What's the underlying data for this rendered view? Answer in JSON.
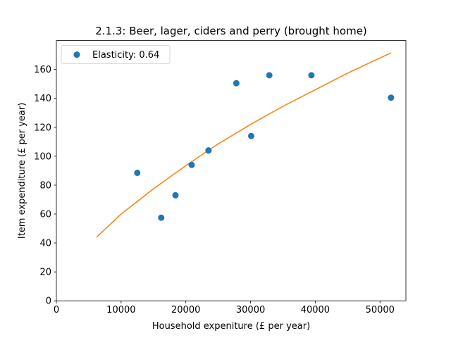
{
  "chart_data": {
    "type": "scatter",
    "title": "2.1.3: Beer, lager, ciders and perry (brought home)",
    "xlabel": "Household expeniture (£ per year)",
    "ylabel": "Item expenditure (£ per year)",
    "xlim": [
      0,
      54000
    ],
    "ylim": [
      0,
      180
    ],
    "xticks": [
      0,
      10000,
      20000,
      30000,
      40000,
      50000
    ],
    "yticks": [
      0,
      20,
      40,
      60,
      80,
      100,
      120,
      140,
      160
    ],
    "grid": false,
    "legend_position": "upper-left",
    "series": [
      {
        "name": "Elasticity: 0.64",
        "kind": "scatter",
        "color": "#1f77b4",
        "points": [
          {
            "x": 12500,
            "y": 88.5
          },
          {
            "x": 16200,
            "y": 57.5
          },
          {
            "x": 18400,
            "y": 73
          },
          {
            "x": 20900,
            "y": 94
          },
          {
            "x": 23500,
            "y": 104
          },
          {
            "x": 27800,
            "y": 150.5
          },
          {
            "x": 30100,
            "y": 114
          },
          {
            "x": 32900,
            "y": 156
          },
          {
            "x": 39400,
            "y": 156
          },
          {
            "x": 51700,
            "y": 140.5
          }
        ]
      },
      {
        "kind": "line",
        "color": "#ff7f0e",
        "points": [
          {
            "x": 6200,
            "y": 44
          },
          {
            "x": 10000,
            "y": 60
          },
          {
            "x": 15000,
            "y": 77.5
          },
          {
            "x": 20000,
            "y": 93.5
          },
          {
            "x": 25000,
            "y": 108.5
          },
          {
            "x": 30000,
            "y": 122
          },
          {
            "x": 35000,
            "y": 134.5
          },
          {
            "x": 40000,
            "y": 146
          },
          {
            "x": 45000,
            "y": 157.5
          },
          {
            "x": 51700,
            "y": 171.5
          }
        ]
      }
    ]
  }
}
